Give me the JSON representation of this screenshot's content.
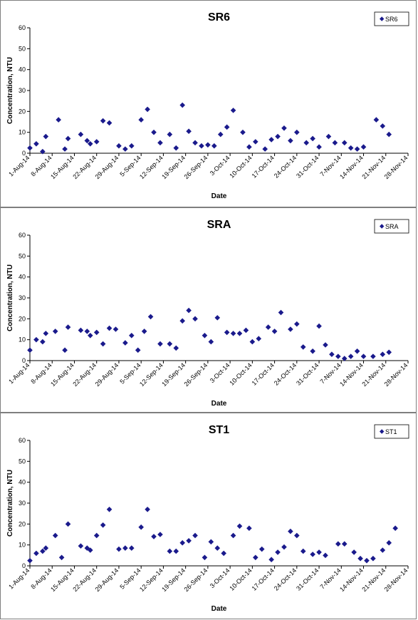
{
  "colors": {
    "marker": "#1a1a8c",
    "axis": "#000000",
    "border": "#7f7f7f"
  },
  "chart_data": [
    {
      "type": "scatter",
      "title": "SR6",
      "legend": "SR6",
      "legend_position": "top-right",
      "xlabel": "Date",
      "ylabel": "Concentration, NTU",
      "ylim": [
        0,
        60
      ],
      "yticks": [
        "0",
        "10",
        "20",
        "30",
        "40",
        "50",
        "60"
      ],
      "xticks": [
        "1-Aug-14",
        "8-Aug-14",
        "15-Aug-14",
        "22-Aug-14",
        "29-Aug-14",
        "5-Sep-14",
        "12-Sep-14",
        "19-Sep-14",
        "26-Sep-14",
        "3-Oct-14",
        "10-Oct-14",
        "17-Oct-14",
        "24-Oct-14",
        "31-Oct-14",
        "7-Nov-14",
        "14-Nov-14",
        "21-Nov-14",
        "28-Nov-14"
      ],
      "grid": false,
      "marker": "diamond",
      "points": [
        [
          "2014-08-01",
          2.5
        ],
        [
          "2014-08-03",
          4.5
        ],
        [
          "2014-08-05",
          0.8
        ],
        [
          "2014-08-06",
          8
        ],
        [
          "2014-08-10",
          16
        ],
        [
          "2014-08-12",
          2
        ],
        [
          "2014-08-13",
          7
        ],
        [
          "2014-08-17",
          9
        ],
        [
          "2014-08-19",
          6
        ],
        [
          "2014-08-20",
          4.5
        ],
        [
          "2014-08-22",
          5.5
        ],
        [
          "2014-08-24",
          15.5
        ],
        [
          "2014-08-26",
          14.5
        ],
        [
          "2014-08-29",
          3.5
        ],
        [
          "2014-08-31",
          2
        ],
        [
          "2014-09-02",
          3.5
        ],
        [
          "2014-09-05",
          16
        ],
        [
          "2014-09-07",
          21
        ],
        [
          "2014-09-09",
          10
        ],
        [
          "2014-09-11",
          5
        ],
        [
          "2014-09-14",
          9
        ],
        [
          "2014-09-16",
          2.5
        ],
        [
          "2014-09-18",
          23
        ],
        [
          "2014-09-20",
          10.5
        ],
        [
          "2014-09-22",
          5
        ],
        [
          "2014-09-24",
          3.5
        ],
        [
          "2014-09-26",
          4
        ],
        [
          "2014-09-28",
          3.5
        ],
        [
          "2014-09-30",
          9
        ],
        [
          "2014-10-02",
          12.5
        ],
        [
          "2014-10-04",
          20.5
        ],
        [
          "2014-10-07",
          10
        ],
        [
          "2014-10-09",
          3
        ],
        [
          "2014-10-11",
          5.5
        ],
        [
          "2014-10-14",
          2
        ],
        [
          "2014-10-16",
          6.5
        ],
        [
          "2014-10-18",
          8
        ],
        [
          "2014-10-20",
          12
        ],
        [
          "2014-10-22",
          6
        ],
        [
          "2014-10-24",
          10
        ],
        [
          "2014-10-27",
          5
        ],
        [
          "2014-10-29",
          7
        ],
        [
          "2014-10-31",
          3
        ],
        [
          "2014-11-03",
          8
        ],
        [
          "2014-11-05",
          5
        ],
        [
          "2014-11-08",
          5
        ],
        [
          "2014-11-10",
          2.5
        ],
        [
          "2014-11-12",
          2
        ],
        [
          "2014-11-14",
          3
        ],
        [
          "2014-11-18",
          16
        ],
        [
          "2014-11-20",
          13
        ],
        [
          "2014-11-22",
          9
        ]
      ]
    },
    {
      "type": "scatter",
      "title": "SRA",
      "legend": "SRA",
      "legend_position": "top-right",
      "xlabel": "Date",
      "ylabel": "Concentration, NTU",
      "ylim": [
        0,
        60
      ],
      "yticks": [
        "0",
        "10",
        "20",
        "30",
        "40",
        "50",
        "60"
      ],
      "xticks": [
        "1-Aug-14",
        "8-Aug-14",
        "15-Aug-14",
        "22-Aug-14",
        "29-Aug-14",
        "5-Sep-14",
        "12-Sep-14",
        "19-Sep-14",
        "26-Sep-14",
        "3-Oct-14",
        "10-Oct-14",
        "17-Oct-14",
        "24-Oct-14",
        "31-Oct-14",
        "7-Nov-14",
        "14-Nov-14",
        "21-Nov-14",
        "28-Nov-14"
      ],
      "grid": false,
      "marker": "diamond",
      "points": [
        [
          "2014-08-01",
          5
        ],
        [
          "2014-08-03",
          10
        ],
        [
          "2014-08-05",
          9
        ],
        [
          "2014-08-06",
          13
        ],
        [
          "2014-08-09",
          14
        ],
        [
          "2014-08-12",
          5
        ],
        [
          "2014-08-13",
          16
        ],
        [
          "2014-08-17",
          14.5
        ],
        [
          "2014-08-19",
          14
        ],
        [
          "2014-08-20",
          12
        ],
        [
          "2014-08-22",
          13.5
        ],
        [
          "2014-08-24",
          8
        ],
        [
          "2014-08-26",
          15.5
        ],
        [
          "2014-08-28",
          15
        ],
        [
          "2014-08-31",
          8.5
        ],
        [
          "2014-09-02",
          12
        ],
        [
          "2014-09-04",
          5
        ],
        [
          "2014-09-06",
          14
        ],
        [
          "2014-09-08",
          21
        ],
        [
          "2014-09-11",
          8
        ],
        [
          "2014-09-14",
          8
        ],
        [
          "2014-09-16",
          6
        ],
        [
          "2014-09-18",
          19
        ],
        [
          "2014-09-20",
          24
        ],
        [
          "2014-09-22",
          20
        ],
        [
          "2014-09-25",
          12
        ],
        [
          "2014-09-27",
          9
        ],
        [
          "2014-09-29",
          20.5
        ],
        [
          "2014-10-02",
          13.5
        ],
        [
          "2014-10-04",
          13
        ],
        [
          "2014-10-06",
          13
        ],
        [
          "2014-10-08",
          14.5
        ],
        [
          "2014-10-10",
          9
        ],
        [
          "2014-10-12",
          10.5
        ],
        [
          "2014-10-15",
          16
        ],
        [
          "2014-10-17",
          14
        ],
        [
          "2014-10-19",
          23
        ],
        [
          "2014-10-22",
          15
        ],
        [
          "2014-10-24",
          17.5
        ],
        [
          "2014-10-26",
          6.5
        ],
        [
          "2014-10-29",
          4.5
        ],
        [
          "2014-10-31",
          16.5
        ],
        [
          "2014-11-02",
          7.5
        ],
        [
          "2014-11-04",
          3
        ],
        [
          "2014-11-06",
          2
        ],
        [
          "2014-11-08",
          1
        ],
        [
          "2014-11-10",
          2
        ],
        [
          "2014-11-12",
          4.5
        ],
        [
          "2014-11-14",
          2
        ],
        [
          "2014-11-17",
          2
        ],
        [
          "2014-11-20",
          3
        ],
        [
          "2014-11-22",
          4
        ]
      ]
    },
    {
      "type": "scatter",
      "title": "ST1",
      "legend": "ST1",
      "legend_position": "top-right",
      "xlabel": "Date",
      "ylabel": "Concentration, NTU",
      "ylim": [
        0,
        60
      ],
      "yticks": [
        "0",
        "10",
        "20",
        "30",
        "40",
        "50",
        "60"
      ],
      "xticks": [
        "1-Aug-14",
        "8-Aug-14",
        "15-Aug-14",
        "22-Aug-14",
        "29-Aug-14",
        "5-Sep-14",
        "12-Sep-14",
        "19-Sep-14",
        "26-Sep-14",
        "3-Oct-14",
        "10-Oct-14",
        "17-Oct-14",
        "24-Oct-14",
        "31-Oct-14",
        "7-Nov-14",
        "14-Nov-14",
        "21-Nov-14",
        "28-Nov-14"
      ],
      "grid": false,
      "marker": "diamond",
      "points": [
        [
          "2014-08-01",
          2.5
        ],
        [
          "2014-08-03",
          6
        ],
        [
          "2014-08-05",
          7
        ],
        [
          "2014-08-06",
          8.5
        ],
        [
          "2014-08-09",
          14.5
        ],
        [
          "2014-08-11",
          4
        ],
        [
          "2014-08-13",
          20
        ],
        [
          "2014-08-17",
          9.5
        ],
        [
          "2014-08-19",
          8.5
        ],
        [
          "2014-08-20",
          7.5
        ],
        [
          "2014-08-22",
          14.5
        ],
        [
          "2014-08-24",
          19.5
        ],
        [
          "2014-08-26",
          27
        ],
        [
          "2014-08-29",
          8
        ],
        [
          "2014-08-31",
          8.5
        ],
        [
          "2014-09-02",
          8.5
        ],
        [
          "2014-09-05",
          18.5
        ],
        [
          "2014-09-07",
          27
        ],
        [
          "2014-09-09",
          14
        ],
        [
          "2014-09-11",
          15
        ],
        [
          "2014-09-14",
          7
        ],
        [
          "2014-09-16",
          7
        ],
        [
          "2014-09-18",
          11
        ],
        [
          "2014-09-20",
          12
        ],
        [
          "2014-09-22",
          14.5
        ],
        [
          "2014-09-25",
          4
        ],
        [
          "2014-09-27",
          11.5
        ],
        [
          "2014-09-29",
          8.5
        ],
        [
          "2014-10-01",
          6
        ],
        [
          "2014-10-04",
          14.5
        ],
        [
          "2014-10-06",
          19
        ],
        [
          "2014-10-09",
          18
        ],
        [
          "2014-10-11",
          4
        ],
        [
          "2014-10-13",
          8
        ],
        [
          "2014-10-16",
          3
        ],
        [
          "2014-10-18",
          6.5
        ],
        [
          "2014-10-20",
          9
        ],
        [
          "2014-10-22",
          16.5
        ],
        [
          "2014-10-24",
          14.5
        ],
        [
          "2014-10-26",
          7
        ],
        [
          "2014-10-29",
          5.5
        ],
        [
          "2014-10-31",
          6.5
        ],
        [
          "2014-11-02",
          5
        ],
        [
          "2014-11-06",
          10.5
        ],
        [
          "2014-11-08",
          10.5
        ],
        [
          "2014-11-11",
          6.5
        ],
        [
          "2014-11-13",
          3.5
        ],
        [
          "2014-11-15",
          2.5
        ],
        [
          "2014-11-17",
          3.5
        ],
        [
          "2014-11-20",
          7.5
        ],
        [
          "2014-11-22",
          11
        ],
        [
          "2014-11-24",
          18
        ]
      ]
    }
  ]
}
